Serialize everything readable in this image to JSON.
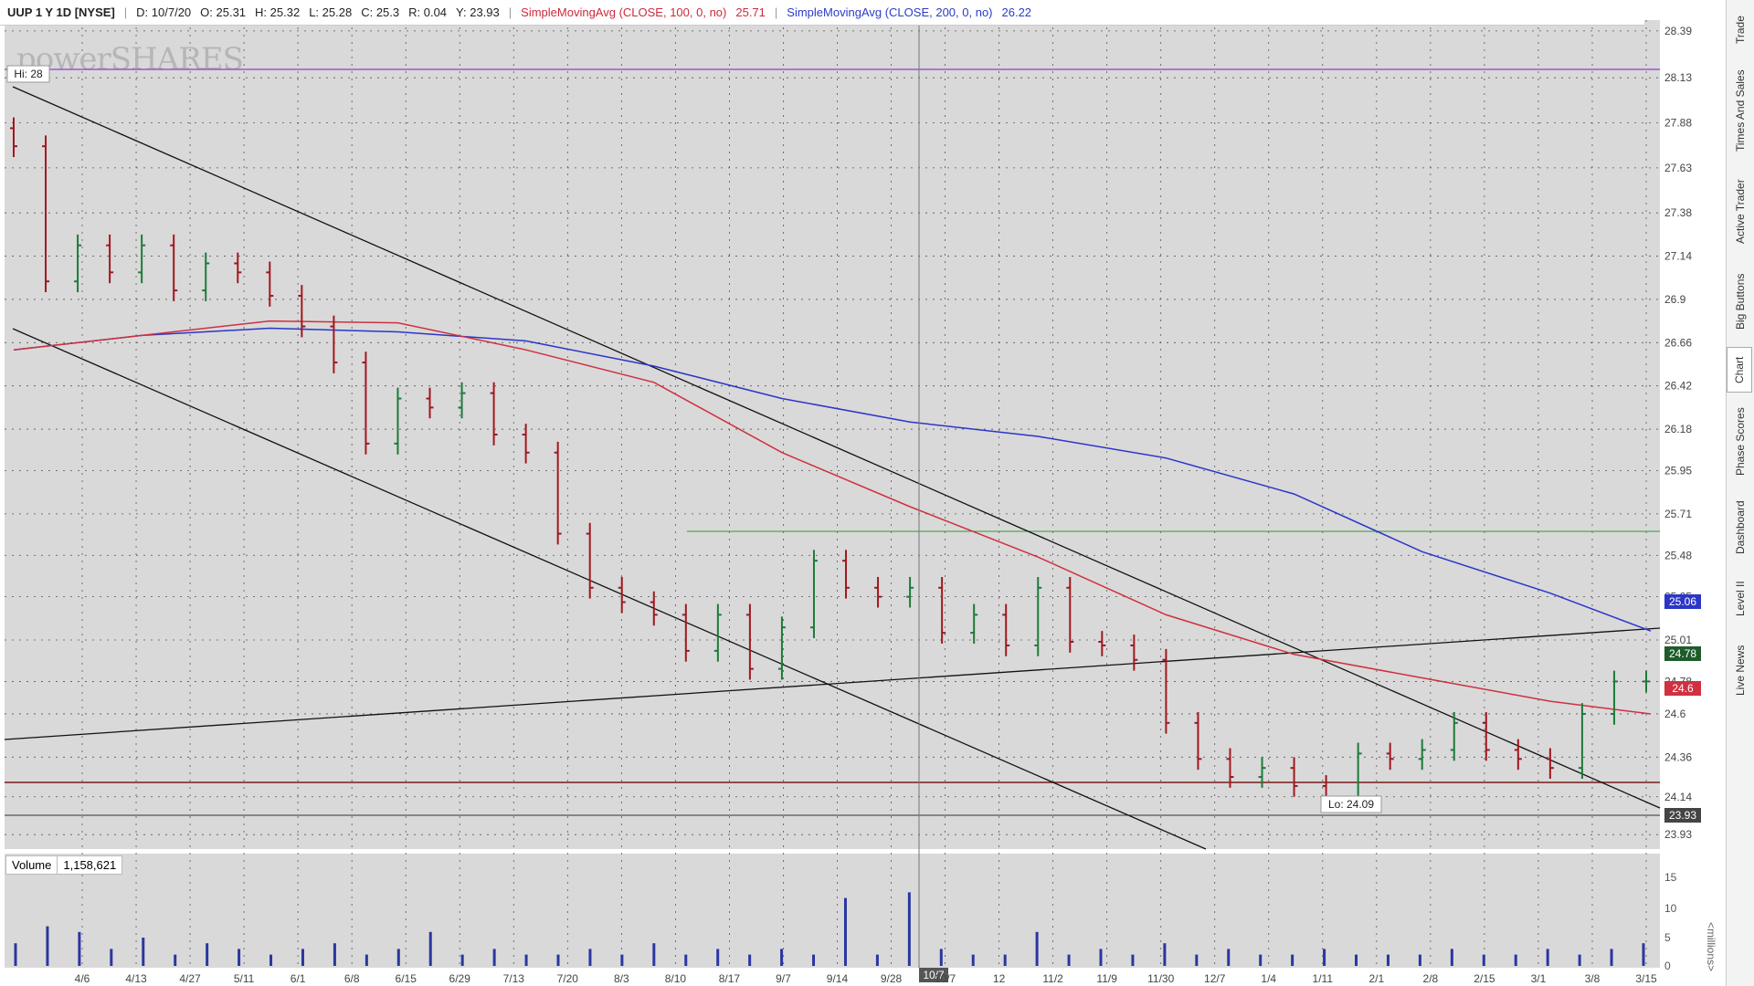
{
  "header": {
    "symbol": "UUP 1 Y 1D [NYSE]",
    "date": "D: 10/7/20",
    "open": "O: 25.31",
    "high": "H: 25.32",
    "low": "L: 25.28",
    "close": "C: 25.3",
    "range": "R: 0.04",
    "y": "Y: 23.93",
    "sma100_label": "SimpleMovingAvg (CLOSE, 100, 0, no)",
    "sma100_value": "25.71",
    "sma200_label": "SimpleMovingAvg (CLOSE, 200, 0, no)",
    "sma200_value": "26.22"
  },
  "watermark": "powerSHARES",
  "annotations": {
    "hi_label": "Hi: 28",
    "lo_label": "Lo: 24.09",
    "crosshair_date": "10/7"
  },
  "price_tags": {
    "sma200": "25.06",
    "last": "24.78",
    "sma100": "24.6",
    "line": "23.93"
  },
  "volume": {
    "label": "Volume",
    "value": "1,158,621",
    "axis_ticks": [
      "15",
      "10",
      "5",
      "0"
    ],
    "unit_label": "<millions>"
  },
  "sidebar": {
    "tabs": [
      "Trade",
      "Times And Sales",
      "Active Trader",
      "Big Buttons",
      "Chart",
      "Phase Scores",
      "Dashboard",
      "Level II",
      "Live News"
    ],
    "active": "Chart"
  },
  "colors": {
    "sma100": "#d03040",
    "sma200": "#2b36c8",
    "up_bar": "#1e7a3a",
    "down_bar": "#a01820",
    "background": "#d9d9d9",
    "hi_line": "#8a3fd0",
    "lo_line": "#7a1a1a",
    "resistance_line": "#2e9a2e",
    "last_price_tag": "#1e5c2a"
  },
  "chart_data": {
    "type": "line",
    "title": "UUP 1 Y 1D [NYSE]",
    "y_ticks": [
      "28.39",
      "28.13",
      "27.88",
      "27.63",
      "27.38",
      "27.14",
      "26.9",
      "26.66",
      "26.42",
      "26.18",
      "25.95",
      "25.71",
      "25.48",
      "25.25",
      "25.01",
      "24.78",
      "24.6",
      "24.36",
      "24.14",
      "23.93"
    ],
    "x_ticks": [
      "4/6",
      "4/13",
      "4/27",
      "5/11",
      "6/1",
      "6/8",
      "6/15",
      "6/29",
      "7/13",
      "7/20",
      "8/3",
      "8/10",
      "8/17",
      "9/7",
      "9/14",
      "9/28",
      "10/7",
      "12",
      "11/2",
      "11/9",
      "11/30",
      "12/7",
      "1/4",
      "1/11",
      "2/1",
      "2/8",
      "2/15",
      "3/1",
      "3/8",
      "3/15"
    ],
    "ylim": [
      23.85,
      28.45
    ],
    "x_range": [
      "3/23/20",
      "3/16/21"
    ],
    "grid": true,
    "series": [
      {
        "name": "SimpleMovingAvg (CLOSE, 100, 0, no)",
        "x": [
          "3/23",
          "4/20",
          "5/18",
          "6/15",
          "7/13",
          "8/10",
          "9/7",
          "10/5",
          "11/2",
          "11/30",
          "12/28",
          "1/25",
          "2/22",
          "3/16"
        ],
        "y": [
          26.62,
          26.7,
          26.78,
          26.77,
          26.62,
          26.44,
          26.05,
          25.75,
          25.47,
          25.15,
          24.93,
          24.8,
          24.67,
          24.6
        ]
      },
      {
        "name": "SimpleMovingAvg (CLOSE, 200, 0, no)",
        "x": [
          "3/23",
          "4/20",
          "5/18",
          "6/15",
          "7/13",
          "8/10",
          "9/7",
          "10/5",
          "11/2",
          "11/30",
          "12/28",
          "1/25",
          "2/22",
          "3/16"
        ],
        "y": [
          26.62,
          26.7,
          26.74,
          26.72,
          26.67,
          26.53,
          26.35,
          26.22,
          26.14,
          26.02,
          25.82,
          25.5,
          25.27,
          25.06
        ]
      },
      {
        "name": "UUP",
        "x": [
          "3/23",
          "3/30",
          "4/6",
          "4/13",
          "4/20",
          "4/27",
          "5/4",
          "5/11",
          "5/18",
          "5/25",
          "6/1",
          "6/8",
          "6/15",
          "6/22",
          "6/29",
          "7/6",
          "7/13",
          "7/20",
          "7/27",
          "8/3",
          "8/10",
          "8/17",
          "8/24",
          "8/31",
          "9/7",
          "9/14",
          "9/21",
          "9/28",
          "10/5",
          "10/12",
          "10/19",
          "10/26",
          "11/2",
          "11/9",
          "11/16",
          "11/23",
          "11/30",
          "12/7",
          "12/14",
          "12/21",
          "12/28",
          "1/4",
          "1/11",
          "1/18",
          "1/25",
          "2/1",
          "2/8",
          "2/15",
          "2/22",
          "3/1",
          "3/8",
          "3/15"
        ],
        "y": [
          27.75,
          27.0,
          27.2,
          27.05,
          27.2,
          26.95,
          27.1,
          27.05,
          26.92,
          26.75,
          26.55,
          26.1,
          26.35,
          26.3,
          26.38,
          26.15,
          26.05,
          25.6,
          25.3,
          25.22,
          25.15,
          24.95,
          25.15,
          24.85,
          25.08,
          25.45,
          25.3,
          25.25,
          25.3,
          25.05,
          25.15,
          24.98,
          25.3,
          25.0,
          24.98,
          24.9,
          24.55,
          24.35,
          24.25,
          24.3,
          24.2,
          24.12,
          24.38,
          24.35,
          24.4,
          24.55,
          24.4,
          24.35,
          24.3,
          24.6,
          24.78,
          24.78
        ]
      }
    ]
  }
}
